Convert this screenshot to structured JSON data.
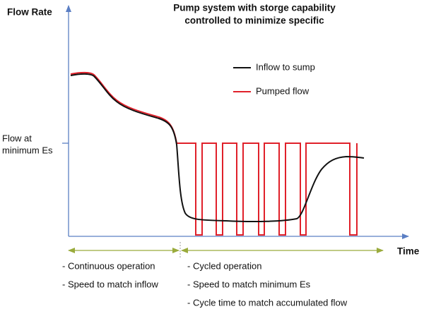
{
  "title": [
    "Pump system with storge capability",
    "controlled to minimize specific"
  ],
  "y_axis_label": "Flow Rate",
  "x_axis_label": "Time",
  "y_marker_label": [
    "Flow at",
    "minimum Es"
  ],
  "legend": [
    "Inflow to sump",
    "Pumped flow"
  ],
  "left_notes": [
    "- Continuous operation",
    "- Speed to match inflow"
  ],
  "right_notes": [
    "- Cycled operation",
    "- Speed to match minimum Es",
    "- Cycle time to match accumulated flow"
  ]
}
